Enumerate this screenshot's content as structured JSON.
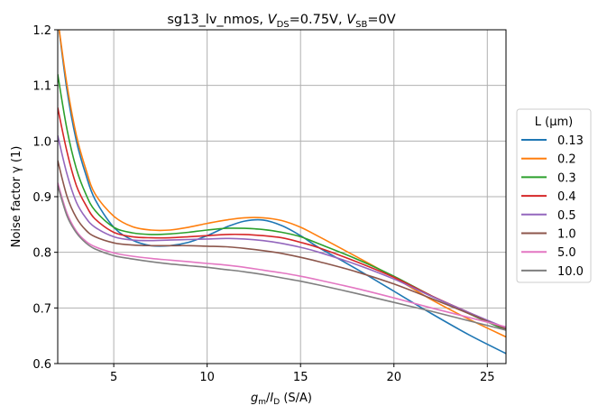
{
  "chart_data": {
    "type": "line",
    "title": {
      "prefix": "sg13_lv_nmos, ",
      "v1": "V",
      "v1_sub": "DS",
      "v1_val": "=0.75V, ",
      "v2": "V",
      "v2_sub": "SB",
      "v2_val": "=0V"
    },
    "xlabel": {
      "g": "g",
      "g_sub": "m",
      "slash": "/",
      "i": "I",
      "i_sub": "D",
      "unit": " (S/A)"
    },
    "ylabel": "Noise factor γ (1)",
    "xlim": [
      2,
      26
    ],
    "ylim": [
      0.6,
      1.2
    ],
    "xticks": [
      5,
      10,
      15,
      20,
      25
    ],
    "xtick_labels": [
      "5",
      "10",
      "15",
      "20",
      "25"
    ],
    "yticks": [
      0.6,
      0.7,
      0.8,
      0.9,
      1.0,
      1.1,
      1.2
    ],
    "ytick_labels": [
      "0.6",
      "0.7",
      "0.8",
      "0.9",
      "1.0",
      "1.1",
      "1.2"
    ],
    "grid": true,
    "legend": {
      "title": "L (µm)",
      "placement": "outside-right"
    },
    "series": [
      {
        "name": "0.13",
        "color": "#1f77b4",
        "x": [
          2,
          2.5,
          3,
          3.5,
          4,
          5,
          6,
          7,
          8,
          9,
          10,
          11,
          12,
          13,
          14,
          15,
          16,
          18,
          20,
          22,
          24,
          26
        ],
        "y": [
          1.22,
          1.09,
          1.0,
          0.94,
          0.895,
          0.845,
          0.822,
          0.812,
          0.812,
          0.818,
          0.83,
          0.845,
          0.856,
          0.858,
          0.848,
          0.83,
          0.808,
          0.77,
          0.73,
          0.69,
          0.652,
          0.618
        ]
      },
      {
        "name": "0.2",
        "color": "#ff7f0e",
        "x": [
          2,
          2.5,
          3,
          3.5,
          4,
          5,
          6,
          7,
          8,
          9,
          10,
          11,
          12,
          13,
          14,
          15,
          16,
          18,
          20,
          22,
          24,
          26
        ],
        "y": [
          1.22,
          1.1,
          1.01,
          0.95,
          0.905,
          0.865,
          0.846,
          0.84,
          0.84,
          0.845,
          0.852,
          0.858,
          0.862,
          0.862,
          0.857,
          0.845,
          0.828,
          0.792,
          0.755,
          0.715,
          0.68,
          0.648
        ]
      },
      {
        "name": "0.3",
        "color": "#2ca02c",
        "x": [
          2,
          2.5,
          3,
          3.5,
          4,
          5,
          6,
          7,
          8,
          9,
          10,
          11,
          12,
          13,
          14,
          15,
          16,
          18,
          20,
          22,
          24,
          26
        ],
        "y": [
          1.12,
          1.02,
          0.95,
          0.905,
          0.875,
          0.845,
          0.835,
          0.832,
          0.833,
          0.836,
          0.84,
          0.843,
          0.843,
          0.841,
          0.836,
          0.828,
          0.815,
          0.788,
          0.757,
          0.722,
          0.69,
          0.66
        ]
      },
      {
        "name": "0.4",
        "color": "#d62728",
        "x": [
          2,
          2.5,
          3,
          3.5,
          4,
          5,
          6,
          7,
          8,
          9,
          10,
          11,
          12,
          13,
          14,
          15,
          16,
          18,
          20,
          22,
          24,
          26
        ],
        "y": [
          1.06,
          0.98,
          0.92,
          0.885,
          0.86,
          0.836,
          0.828,
          0.826,
          0.826,
          0.828,
          0.83,
          0.832,
          0.832,
          0.83,
          0.826,
          0.818,
          0.808,
          0.783,
          0.755,
          0.722,
          0.692,
          0.663
        ]
      },
      {
        "name": "0.5",
        "color": "#9467bd",
        "x": [
          2,
          2.5,
          3,
          3.5,
          4,
          5,
          6,
          7,
          8,
          9,
          10,
          11,
          12,
          13,
          14,
          15,
          16,
          18,
          20,
          22,
          24,
          26
        ],
        "y": [
          1.01,
          0.94,
          0.89,
          0.862,
          0.845,
          0.828,
          0.822,
          0.821,
          0.822,
          0.823,
          0.824,
          0.825,
          0.824,
          0.821,
          0.816,
          0.809,
          0.8,
          0.778,
          0.752,
          0.721,
          0.692,
          0.664
        ]
      },
      {
        "name": "1.0",
        "color": "#8c564b",
        "x": [
          2,
          2.5,
          3,
          3.5,
          4,
          5,
          6,
          7,
          8,
          9,
          10,
          11,
          12,
          13,
          14,
          15,
          16,
          18,
          20,
          22,
          24,
          26
        ],
        "y": [
          0.965,
          0.9,
          0.862,
          0.84,
          0.828,
          0.817,
          0.813,
          0.812,
          0.812,
          0.812,
          0.811,
          0.81,
          0.807,
          0.803,
          0.798,
          0.791,
          0.783,
          0.765,
          0.743,
          0.717,
          0.69,
          0.662
        ]
      },
      {
        "name": "5.0",
        "color": "#e377c2",
        "x": [
          2,
          2.5,
          3,
          3.5,
          4,
          5,
          6,
          7,
          8,
          9,
          10,
          11,
          12,
          13,
          14,
          15,
          16,
          18,
          20,
          22,
          24,
          26
        ],
        "y": [
          0.925,
          0.87,
          0.838,
          0.82,
          0.81,
          0.799,
          0.793,
          0.789,
          0.786,
          0.783,
          0.78,
          0.777,
          0.773,
          0.768,
          0.763,
          0.757,
          0.75,
          0.735,
          0.718,
          0.7,
          0.683,
          0.666
        ]
      },
      {
        "name": "10.0",
        "color": "#7f7f7f",
        "x": [
          2,
          2.5,
          3,
          3.5,
          4,
          5,
          6,
          7,
          8,
          9,
          10,
          11,
          12,
          13,
          14,
          15,
          16,
          18,
          20,
          22,
          24,
          26
        ],
        "y": [
          0.92,
          0.865,
          0.835,
          0.817,
          0.806,
          0.794,
          0.788,
          0.783,
          0.779,
          0.776,
          0.773,
          0.769,
          0.765,
          0.76,
          0.754,
          0.748,
          0.741,
          0.726,
          0.71,
          0.694,
          0.677,
          0.66
        ]
      }
    ]
  }
}
